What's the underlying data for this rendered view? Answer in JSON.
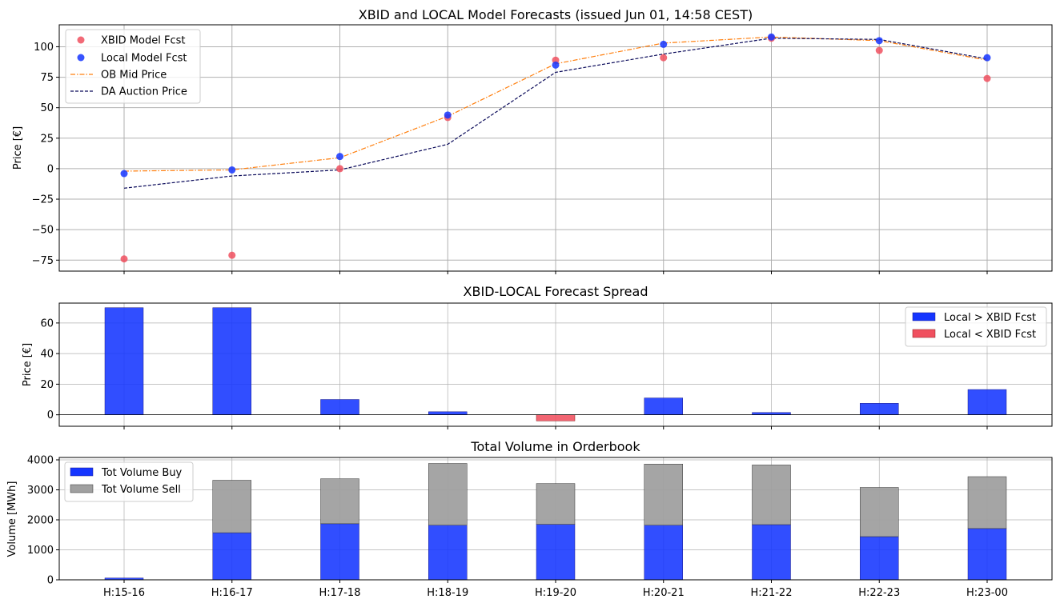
{
  "colors": {
    "xbid": "#f0505f",
    "local": "#1535ff",
    "ob_mid": "#ff7f0e",
    "da": "#0a0a5a",
    "spread_pos": "#1535ff",
    "spread_neg": "#f0505f",
    "buy": "#1535ff",
    "sell": "#a0a0a0",
    "grid": "#b0b0b0"
  },
  "chart_data": [
    {
      "id": "forecasts",
      "type": "line",
      "title": "XBID and LOCAL Model Forecasts (issued Jun 01, 14:58 CEST)",
      "xlabel": "",
      "ylabel": "Price [€]",
      "categories": [
        "H:15-16",
        "H:16-17",
        "H:17-18",
        "H:18-19",
        "H:19-20",
        "H:20-21",
        "H:21-22",
        "H:22-23",
        "H:23-00"
      ],
      "ylim": [
        -84,
        118
      ],
      "yticks": [
        -75,
        -50,
        -25,
        0,
        25,
        50,
        75,
        100
      ],
      "ytick_labels": [
        "−75",
        "−50",
        "−25",
        "0",
        "25",
        "50",
        "75",
        "100"
      ],
      "grid": true,
      "legend": "top-left",
      "series": [
        {
          "name": "XBID Model Fcst",
          "kind": "scatter",
          "color_key": "xbid",
          "values": [
            -74,
            -71,
            0,
            42,
            89,
            91,
            107,
            97,
            74
          ]
        },
        {
          "name": "Local Model Fcst",
          "kind": "scatter",
          "color_key": "local",
          "values": [
            -4,
            -1,
            10,
            44,
            85,
            102,
            108,
            105,
            91
          ]
        },
        {
          "name": "OB Mid Price",
          "kind": "line",
          "dash": "dashdot",
          "color_key": "ob_mid",
          "values": [
            -2,
            -1,
            9,
            43,
            86,
            103,
            108,
            105,
            89
          ]
        },
        {
          "name": "DA Auction Price",
          "kind": "line",
          "dash": "dashed",
          "color_key": "da",
          "values": [
            -16,
            -6,
            -1,
            20,
            79,
            94,
            107,
            106,
            90
          ]
        }
      ]
    },
    {
      "id": "spread",
      "type": "bar",
      "title": "XBID-LOCAL Forecast Spread",
      "xlabel": "",
      "ylabel": "Price [€]",
      "categories": [
        "H:15-16",
        "H:16-17",
        "H:17-18",
        "H:18-19",
        "H:19-20",
        "H:20-21",
        "H:21-22",
        "H:22-23",
        "H:23-00"
      ],
      "values": [
        70,
        70,
        10,
        2,
        -4,
        11,
        1.5,
        7.5,
        16.5
      ],
      "ylim": [
        -7.5,
        73
      ],
      "yticks": [
        0,
        20,
        40,
        60
      ],
      "grid": true,
      "legend": "top-right",
      "legend_entries": [
        {
          "name": "Local > XBID Fcst",
          "color_key": "spread_pos"
        },
        {
          "name": "Local < XBID Fcst",
          "color_key": "spread_neg"
        }
      ]
    },
    {
      "id": "volume",
      "type": "bar",
      "stacked": true,
      "title": "Total Volume in Orderbook",
      "xlabel": "",
      "ylabel": "Volume [MWh]",
      "categories": [
        "H:15-16",
        "H:16-17",
        "H:17-18",
        "H:18-19",
        "H:19-20",
        "H:20-21",
        "H:21-22",
        "H:22-23",
        "H:23-00"
      ],
      "xtick_labels": [
        "H:15-16",
        "H:16-17",
        "H:17-18",
        "H:18-19",
        "H:19-20",
        "H:20-21",
        "H:21-22",
        "H:22-23",
        "H:23-00"
      ],
      "ylim": [
        0,
        4080
      ],
      "yticks": [
        0,
        1000,
        2000,
        3000,
        4000
      ],
      "grid": true,
      "legend": "top-left",
      "series": [
        {
          "name": "Tot Volume Buy",
          "color_key": "buy",
          "values": [
            60,
            1570,
            1870,
            1820,
            1850,
            1820,
            1840,
            1440,
            1710
          ]
        },
        {
          "name": "Tot Volume Sell",
          "color_key": "sell",
          "values": [
            0,
            1750,
            1500,
            2060,
            1360,
            2040,
            1990,
            1640,
            1730
          ]
        }
      ]
    }
  ]
}
